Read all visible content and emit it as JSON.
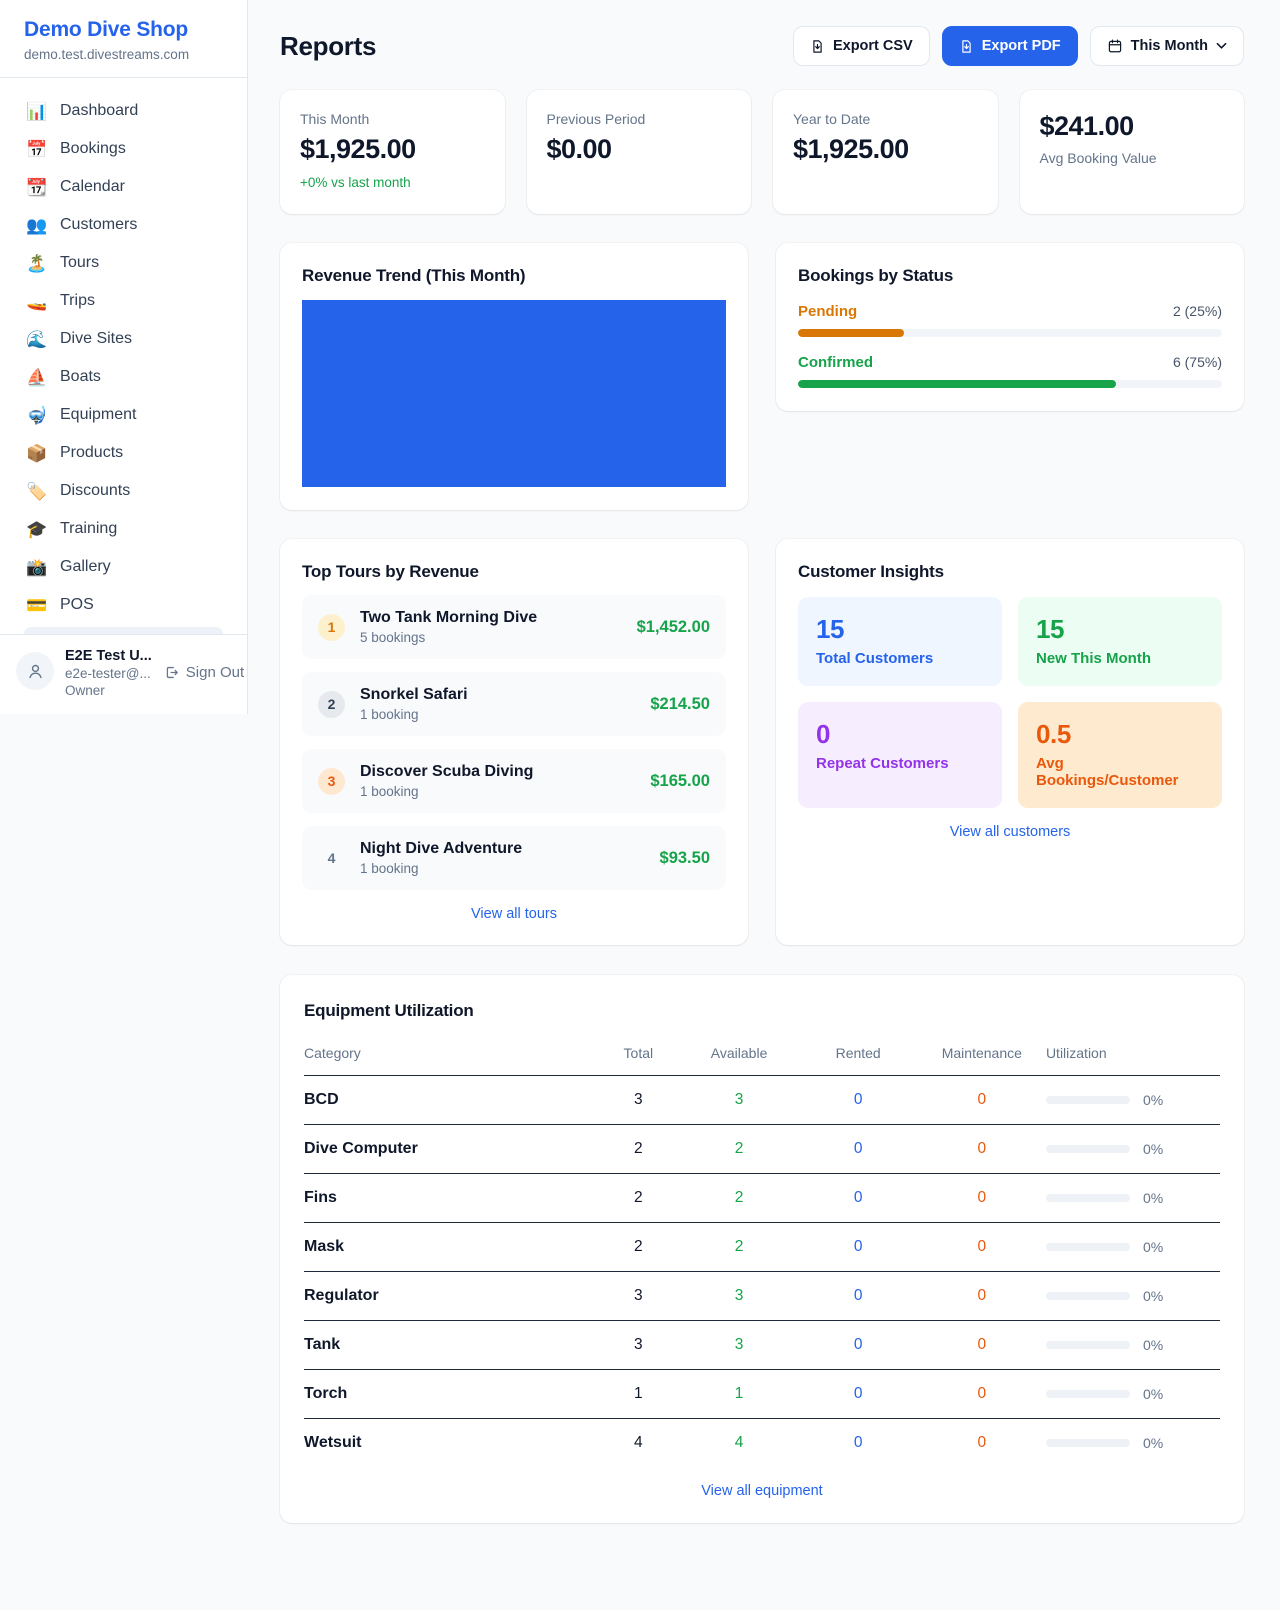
{
  "colors": {
    "accent": "#2563eb",
    "green": "#16a34a",
    "orange": "#d97706",
    "deep_orange": "#ea580c",
    "purple": "#9333ea",
    "text_dark": "#0f172a",
    "text_gray": "#64748b",
    "bg": "#f8fafc",
    "card_border": "#e2e8f0"
  },
  "sidebar": {
    "shop_name": "Demo Dive Shop",
    "shop_domain": "demo.test.divestreams.com",
    "items": [
      {
        "icon": "📊",
        "label": "Dashboard"
      },
      {
        "icon": "📅",
        "label": "Bookings"
      },
      {
        "icon": "📆",
        "label": "Calendar"
      },
      {
        "icon": "👥",
        "label": "Customers"
      },
      {
        "icon": "🏝️",
        "label": "Tours"
      },
      {
        "icon": "🚤",
        "label": "Trips"
      },
      {
        "icon": "🌊",
        "label": "Dive Sites"
      },
      {
        "icon": "⛵",
        "label": "Boats"
      },
      {
        "icon": "🤿",
        "label": "Equipment"
      },
      {
        "icon": "📦",
        "label": "Products"
      },
      {
        "icon": "🏷️",
        "label": "Discounts"
      },
      {
        "icon": "🎓",
        "label": "Training"
      },
      {
        "icon": "📸",
        "label": "Gallery"
      },
      {
        "icon": "💳",
        "label": "POS"
      }
    ],
    "user": {
      "name": "E2E Test U...",
      "email": "e2e-tester@...",
      "role": "Owner",
      "sign_out": "Sign Out"
    }
  },
  "header": {
    "title": "Reports",
    "export_csv": "Export CSV",
    "export_pdf": "Export PDF",
    "period": "This Month"
  },
  "stats": [
    {
      "label": "This Month",
      "value": "$1,925.00",
      "delta": "+0% vs last month"
    },
    {
      "label": "Previous Period",
      "value": "$0.00"
    },
    {
      "label": "Year to Date",
      "value": "$1,925.00"
    },
    {
      "value": "$241.00",
      "label": "Avg Booking Value"
    }
  ],
  "revenue_trend": {
    "title": "Revenue Trend (This Month)"
  },
  "bookings_by_status": {
    "title": "Bookings by Status",
    "rows": [
      {
        "label": "Pending",
        "value": "2 (25%)",
        "pct": 25
      },
      {
        "label": "Confirmed",
        "value": "6 (75%)",
        "pct": 75
      }
    ]
  },
  "top_tours": {
    "title": "Top Tours by Revenue",
    "items": [
      {
        "rank": "1",
        "name": "Two Tank Morning Dive",
        "bookings": "5 bookings",
        "revenue": "$1,452.00"
      },
      {
        "rank": "2",
        "name": "Snorkel Safari",
        "bookings": "1 booking",
        "revenue": "$214.50"
      },
      {
        "rank": "3",
        "name": "Discover Scuba Diving",
        "bookings": "1 booking",
        "revenue": "$165.00"
      },
      {
        "rank": "4",
        "name": "Night Dive Adventure",
        "bookings": "1 booking",
        "revenue": "$93.50"
      }
    ],
    "view_all": "View all tours"
  },
  "customer_insights": {
    "title": "Customer Insights",
    "tiles": [
      {
        "value": "15",
        "label": "Total Customers"
      },
      {
        "value": "15",
        "label": "New This Month"
      },
      {
        "value": "0",
        "label": "Repeat Customers"
      },
      {
        "value": "0.5",
        "label": "Avg Bookings/Customer"
      }
    ],
    "view_all": "View all customers"
  },
  "equipment": {
    "title": "Equipment Utilization",
    "columns": [
      "Category",
      "Total",
      "Available",
      "Rented",
      "Maintenance",
      "Utilization"
    ],
    "rows": [
      {
        "category": "BCD",
        "total": "3",
        "available": "3",
        "rented": "0",
        "maintenance": "0",
        "utilization": "0%"
      },
      {
        "category": "Dive Computer",
        "total": "2",
        "available": "2",
        "rented": "0",
        "maintenance": "0",
        "utilization": "0%"
      },
      {
        "category": "Fins",
        "total": "2",
        "available": "2",
        "rented": "0",
        "maintenance": "0",
        "utilization": "0%"
      },
      {
        "category": "Mask",
        "total": "2",
        "available": "2",
        "rented": "0",
        "maintenance": "0",
        "utilization": "0%"
      },
      {
        "category": "Regulator",
        "total": "3",
        "available": "3",
        "rented": "0",
        "maintenance": "0",
        "utilization": "0%"
      },
      {
        "category": "Tank",
        "total": "3",
        "available": "3",
        "rented": "0",
        "maintenance": "0",
        "utilization": "0%"
      },
      {
        "category": "Torch",
        "total": "1",
        "available": "1",
        "rented": "0",
        "maintenance": "0",
        "utilization": "0%"
      },
      {
        "category": "Wetsuit",
        "total": "4",
        "available": "4",
        "rented": "0",
        "maintenance": "0",
        "utilization": "0%"
      }
    ],
    "view_all": "View all equipment"
  },
  "chart_data": [
    {
      "type": "bar",
      "title": "Revenue Trend (This Month)",
      "categories": [
        "This Month"
      ],
      "values": [
        1925
      ],
      "bar_color": "#2563eb",
      "axes_visible": false,
      "legend": false
    },
    {
      "type": "bar",
      "title": "Bookings by Status",
      "orientation": "horizontal",
      "categories": [
        "Pending",
        "Confirmed"
      ],
      "values": [
        2,
        6
      ],
      "data_labels": [
        "2 (25%)",
        "6 (75%)"
      ],
      "percentages": [
        25,
        75
      ],
      "bar_colors": [
        "#d97706",
        "#16a34a"
      ],
      "legend": false
    }
  ]
}
